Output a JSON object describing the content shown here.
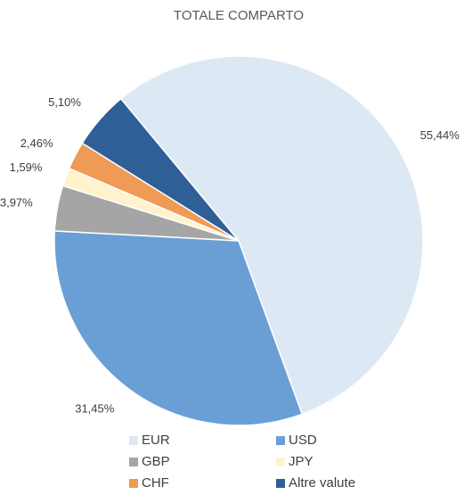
{
  "chart_data": {
    "type": "pie",
    "title": "TOTALE COMPARTO",
    "categories": [
      "EUR",
      "USD",
      "GBP",
      "JPY",
      "CHF",
      "Altre valute"
    ],
    "values": [
      55.44,
      31.45,
      3.97,
      1.59,
      2.46,
      5.1
    ],
    "value_labels": [
      "55,44%",
      "31,45%",
      "3,97%",
      "1,59%",
      "2,46%",
      "5,10%"
    ],
    "colors": [
      "#dde8f5",
      "#6a9fd6",
      "#a5a5a5",
      "#fff2cc",
      "#ef9a55",
      "#2e5f96"
    ],
    "legend": "bottom"
  }
}
